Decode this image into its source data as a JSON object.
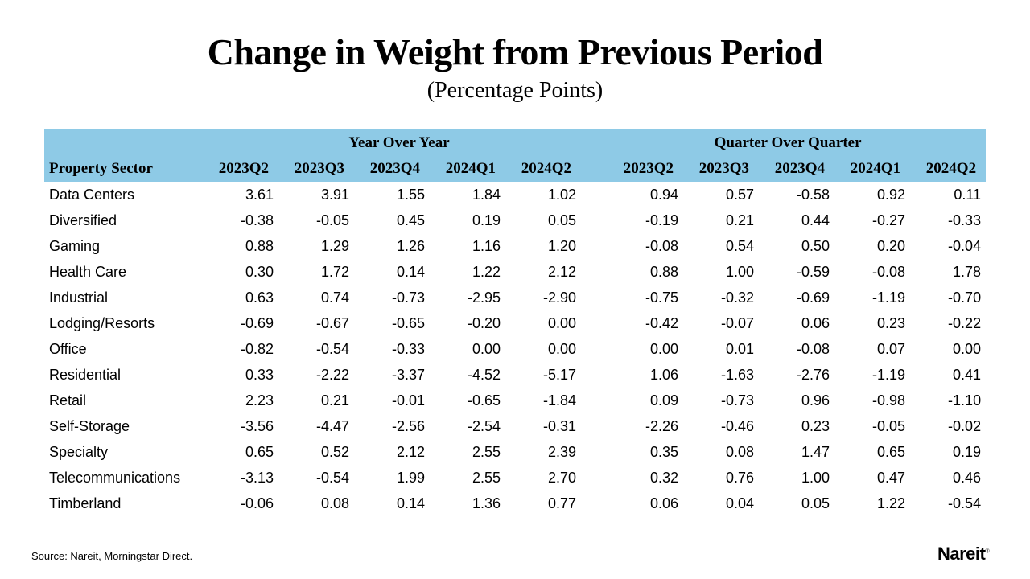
{
  "title": "Change in Weight from Previous Period",
  "subtitle": "(Percentage Points)",
  "table": {
    "group_headers": [
      "Year Over Year",
      "Quarter Over Quarter"
    ],
    "row_header": "Property Sector",
    "periods": [
      "2023Q2",
      "2023Q3",
      "2023Q4",
      "2024Q1",
      "2024Q2"
    ],
    "header_color": "#8ecae6",
    "rows": [
      {
        "sector": "Data Centers",
        "yoy": [
          "3.61",
          "3.91",
          "1.55",
          "1.84",
          "1.02"
        ],
        "qoq": [
          "0.94",
          "0.57",
          "-0.58",
          "0.92",
          "0.11"
        ]
      },
      {
        "sector": "Diversified",
        "yoy": [
          "-0.38",
          "-0.05",
          "0.45",
          "0.19",
          "0.05"
        ],
        "qoq": [
          "-0.19",
          "0.21",
          "0.44",
          "-0.27",
          "-0.33"
        ]
      },
      {
        "sector": "Gaming",
        "yoy": [
          "0.88",
          "1.29",
          "1.26",
          "1.16",
          "1.20"
        ],
        "qoq": [
          "-0.08",
          "0.54",
          "0.50",
          "0.20",
          "-0.04"
        ]
      },
      {
        "sector": "Health Care",
        "yoy": [
          "0.30",
          "1.72",
          "0.14",
          "1.22",
          "2.12"
        ],
        "qoq": [
          "0.88",
          "1.00",
          "-0.59",
          "-0.08",
          "1.78"
        ]
      },
      {
        "sector": "Industrial",
        "yoy": [
          "0.63",
          "0.74",
          "-0.73",
          "-2.95",
          "-2.90"
        ],
        "qoq": [
          "-0.75",
          "-0.32",
          "-0.69",
          "-1.19",
          "-0.70"
        ]
      },
      {
        "sector": "Lodging/Resorts",
        "yoy": [
          "-0.69",
          "-0.67",
          "-0.65",
          "-0.20",
          "0.00"
        ],
        "qoq": [
          "-0.42",
          "-0.07",
          "0.06",
          "0.23",
          "-0.22"
        ]
      },
      {
        "sector": "Office",
        "yoy": [
          "-0.82",
          "-0.54",
          "-0.33",
          "0.00",
          "0.00"
        ],
        "qoq": [
          "0.00",
          "0.01",
          "-0.08",
          "0.07",
          "0.00"
        ]
      },
      {
        "sector": "Residential",
        "yoy": [
          "0.33",
          "-2.22",
          "-3.37",
          "-4.52",
          "-5.17"
        ],
        "qoq": [
          "1.06",
          "-1.63",
          "-2.76",
          "-1.19",
          "0.41"
        ]
      },
      {
        "sector": "Retail",
        "yoy": [
          "2.23",
          "0.21",
          "-0.01",
          "-0.65",
          "-1.84"
        ],
        "qoq": [
          "0.09",
          "-0.73",
          "0.96",
          "-0.98",
          "-1.10"
        ]
      },
      {
        "sector": "Self-Storage",
        "yoy": [
          "-3.56",
          "-4.47",
          "-2.56",
          "-2.54",
          "-0.31"
        ],
        "qoq": [
          "-2.26",
          "-0.46",
          "0.23",
          "-0.05",
          "-0.02"
        ]
      },
      {
        "sector": "Specialty",
        "yoy": [
          "0.65",
          "0.52",
          "2.12",
          "2.55",
          "2.39"
        ],
        "qoq": [
          "0.35",
          "0.08",
          "1.47",
          "0.65",
          "0.19"
        ]
      },
      {
        "sector": "Telecommunications",
        "yoy": [
          "-3.13",
          "-0.54",
          "1.99",
          "2.55",
          "2.70"
        ],
        "qoq": [
          "0.32",
          "0.76",
          "1.00",
          "0.47",
          "0.46"
        ]
      },
      {
        "sector": "Timberland",
        "yoy": [
          "-0.06",
          "0.08",
          "0.14",
          "1.36",
          "0.77"
        ],
        "qoq": [
          "0.06",
          "0.04",
          "0.05",
          "1.22",
          "-0.54"
        ]
      }
    ]
  },
  "source": "Source: Nareit, Morningstar Direct.",
  "logo": {
    "text": "Nareit",
    "mark": "®"
  }
}
